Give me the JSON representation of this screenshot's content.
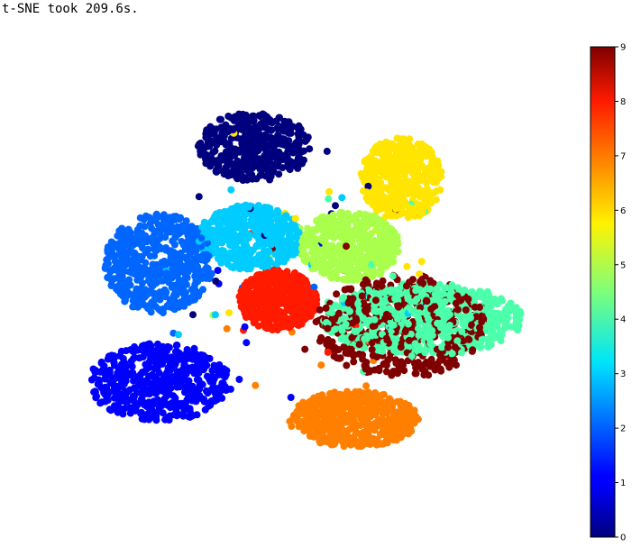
{
  "output": {
    "log_text": "t-SNE took 209.6s."
  },
  "chart_data": {
    "type": "scatter",
    "title": "",
    "xlabel": "",
    "ylabel": "",
    "axes": "off",
    "grid": false,
    "colorbar": {
      "colormap": "jet",
      "range": [
        0,
        9
      ],
      "ticks": [
        "0",
        "1",
        "2",
        "3",
        "4",
        "5",
        "6",
        "7",
        "8",
        "9"
      ],
      "placement": "right"
    },
    "clusters": [
      {
        "label": 0,
        "color": "#00007f",
        "center": [
          -2.0,
          7.6
        ],
        "spread": [
          2.6,
          1.6
        ],
        "count": 420
      },
      {
        "label": 1,
        "color": "#0000ff",
        "center": [
          -6.4,
          -3.3
        ],
        "spread": [
          3.3,
          1.8
        ],
        "count": 520
      },
      {
        "label": 2,
        "color": "#0066ff",
        "center": [
          -6.4,
          2.2
        ],
        "spread": [
          2.5,
          2.3
        ],
        "count": 520
      },
      {
        "label": 3,
        "color": "#00ccff",
        "center": [
          -2.2,
          3.4
        ],
        "spread": [
          2.4,
          1.5
        ],
        "count": 480
      },
      {
        "label": 4,
        "color": "#4cffaa",
        "center": [
          5.8,
          -0.4
        ],
        "spread": [
          4.6,
          1.7
        ],
        "count": 620
      },
      {
        "label": 5,
        "color": "#aaff4c",
        "center": [
          2.4,
          3.0
        ],
        "spread": [
          2.3,
          1.6
        ],
        "count": 460
      },
      {
        "label": 6,
        "color": "#ffe500",
        "center": [
          4.8,
          6.1
        ],
        "spread": [
          1.9,
          1.9
        ],
        "count": 420
      },
      {
        "label": 7,
        "color": "#ff7f00",
        "center": [
          2.6,
          -5.0
        ],
        "spread": [
          3.0,
          1.3
        ],
        "count": 520
      },
      {
        "label": 8,
        "color": "#ff1a00",
        "center": [
          -0.9,
          0.5
        ],
        "spread": [
          1.8,
          1.4
        ],
        "count": 470
      },
      {
        "label": 9,
        "color": "#7f0000",
        "center": [
          4.8,
          -0.7
        ],
        "spread": [
          4.0,
          2.4
        ],
        "count": 440
      }
    ]
  }
}
